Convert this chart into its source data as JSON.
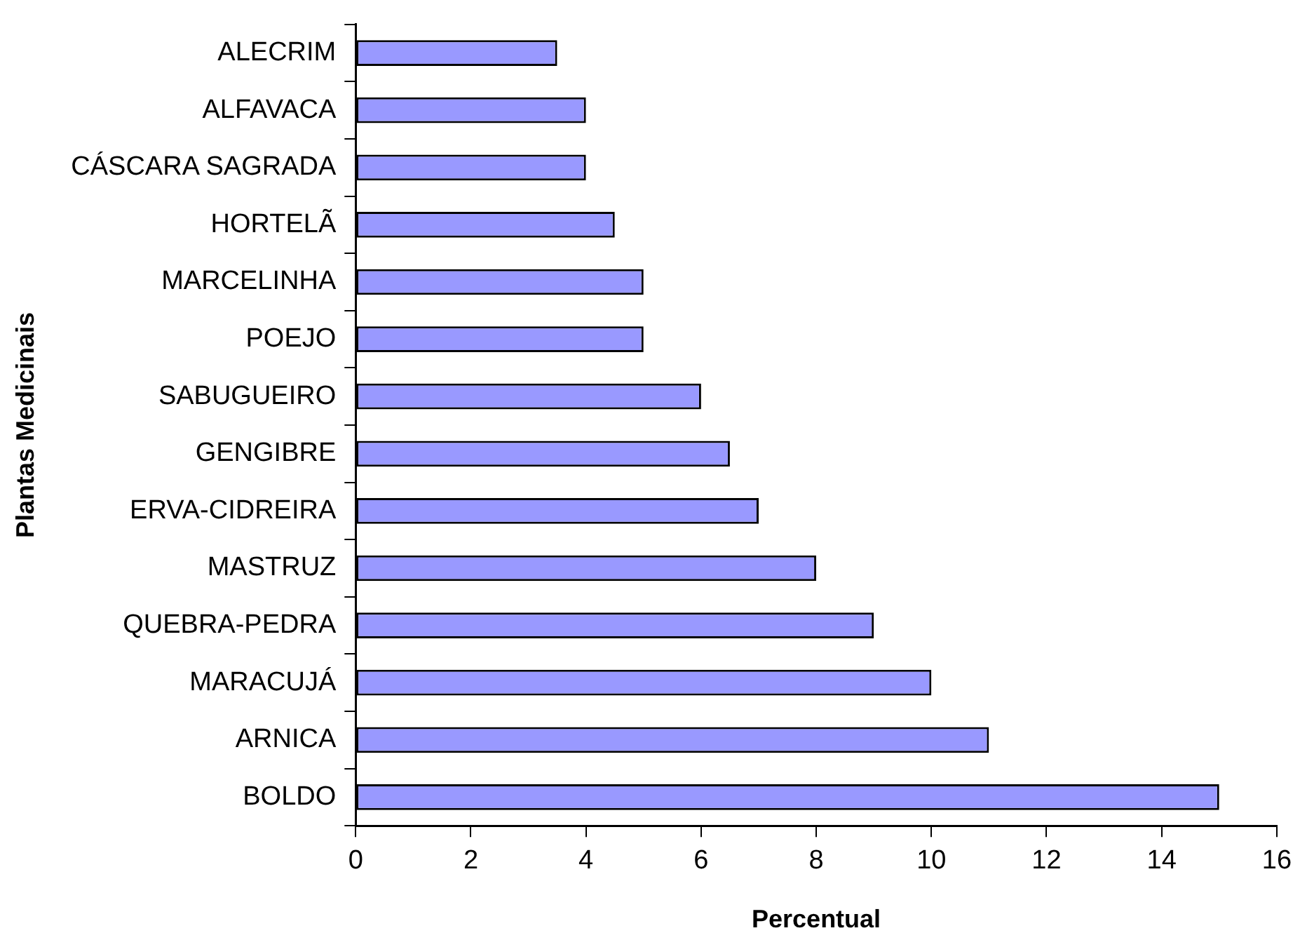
{
  "chart_data": {
    "type": "bar",
    "orientation": "horizontal",
    "xlabel": "Percentual",
    "ylabel": "Plantas Medicinais",
    "categories": [
      "ALECRIM",
      "ALFAVACA",
      "CÁSCARA SAGRADA",
      "HORTELÃ",
      "MARCELINHA",
      "POEJO",
      "SABUGUEIRO",
      "GENGIBRE",
      "ERVA-CIDREIRA",
      "MASTRUZ",
      "QUEBRA-PEDRA",
      "MARACUJÁ",
      "ARNICA",
      "BOLDO"
    ],
    "values": [
      3.5,
      4,
      4,
      4.5,
      5,
      5,
      6,
      6.5,
      7,
      8,
      9,
      10,
      11,
      15
    ],
    "color": "#9999ff",
    "xlim": [
      0,
      16
    ],
    "xticks": [
      0,
      2,
      4,
      6,
      8,
      10,
      12,
      14,
      16
    ],
    "grid": false,
    "legend": false
  }
}
